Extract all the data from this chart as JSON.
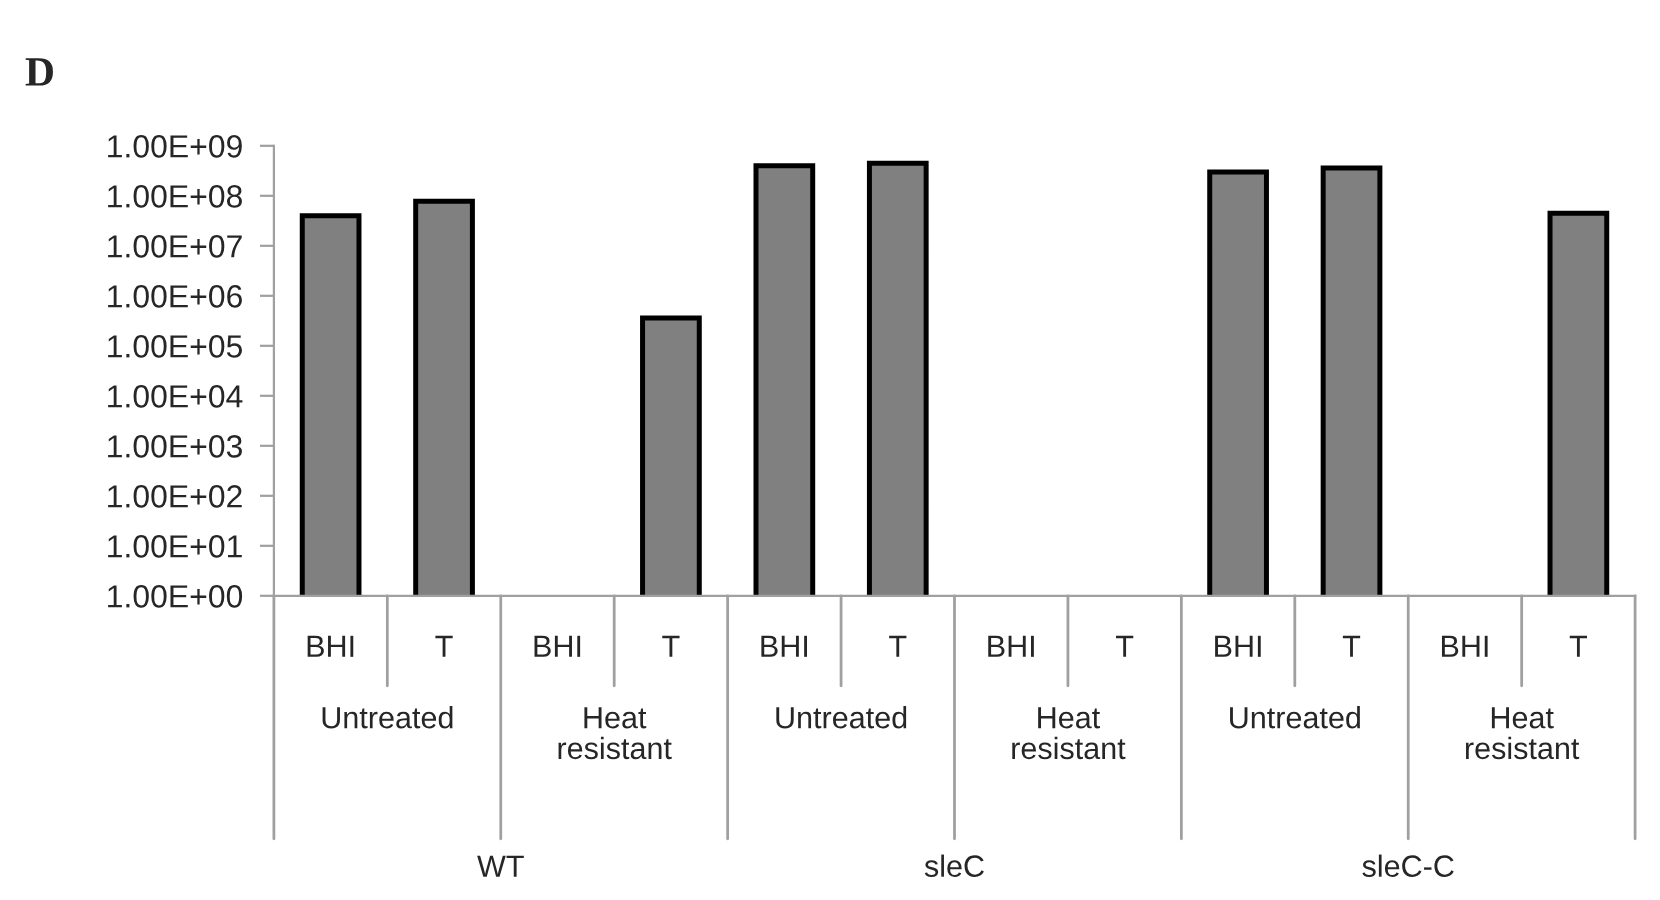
{
  "chart_data": {
    "type": "bar",
    "title": "D",
    "categories": [
      "BHI",
      "T",
      "BHI",
      "T",
      "BHI",
      "T",
      "BHI",
      "T",
      "BHI",
      "T",
      "BHI",
      "T"
    ],
    "values": [
      40000000.0,
      78000000.0,
      null,
      360000.0,
      400000000.0,
      450000000.0,
      null,
      null,
      300000000.0,
      360000000.0,
      null,
      45000000.0
    ],
    "color": "#808080",
    "log": true,
    "ylim": [
      1,
      1000000000.0
    ],
    "yticks": [
      {
        "value": 1,
        "label": "1.00E+00"
      },
      {
        "value": 10,
        "label": "1.00E+01"
      },
      {
        "value": 100,
        "label": "1.00E+02"
      },
      {
        "value": 1000,
        "label": "1.00E+03"
      },
      {
        "value": 10000,
        "label": "1.00E+04"
      },
      {
        "value": 100000,
        "label": "1.00E+05"
      },
      {
        "value": 1000000,
        "label": "1.00E+06"
      },
      {
        "value": 10000000,
        "label": "1.00E+07"
      },
      {
        "value": 100000000,
        "label": "1.00E+08"
      },
      {
        "value": 1000000000,
        "label": "1.00E+09"
      }
    ],
    "grid": false,
    "legend": false,
    "annotations": [
      "Untreated",
      "Heat\nresistant",
      "Untreated",
      "Heat\nresistant",
      "Untreated",
      "Heat\nresistant",
      "WT",
      "sleC",
      "sleC-C"
    ]
  }
}
